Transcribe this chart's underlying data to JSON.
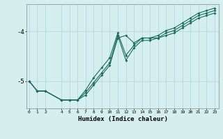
{
  "xlabel": "Humidex (Indice chaleur)",
  "bg_color": "#d5eeee",
  "grid_color": "#b8d8d8",
  "line_color": "#1a6b60",
  "x_ticks": [
    0,
    1,
    2,
    4,
    5,
    6,
    7,
    8,
    9,
    10,
    11,
    12,
    13,
    14,
    15,
    16,
    17,
    18,
    19,
    20,
    21,
    22,
    23
  ],
  "xlim": [
    -0.3,
    23.5
  ],
  "ylim": [
    -5.55,
    -3.45
  ],
  "yticks": [
    -5.0,
    -4.0
  ],
  "series": {
    "line1": {
      "x": [
        0,
        1,
        2,
        4,
        5,
        6,
        7,
        8,
        9,
        10,
        11,
        12,
        13,
        14,
        15,
        16,
        17,
        18,
        19,
        20,
        21,
        22,
        23
      ],
      "y": [
        -5.0,
        -5.2,
        -5.2,
        -5.38,
        -5.38,
        -5.38,
        -5.18,
        -4.93,
        -4.73,
        -4.53,
        -4.03,
        -4.48,
        -4.28,
        -4.13,
        -4.13,
        -4.08,
        -3.98,
        -3.93,
        -3.83,
        -3.73,
        -3.63,
        -3.58,
        -3.53
      ]
    },
    "line2": {
      "x": [
        0,
        1,
        2,
        4,
        5,
        6,
        7,
        8,
        9,
        10,
        11,
        12,
        13,
        14,
        15,
        16,
        17,
        18,
        19,
        20,
        21,
        22,
        23
      ],
      "y": [
        -5.0,
        -5.2,
        -5.2,
        -5.38,
        -5.38,
        -5.38,
        -5.23,
        -5.03,
        -4.83,
        -4.63,
        -4.08,
        -4.58,
        -4.33,
        -4.18,
        -4.18,
        -4.13,
        -4.03,
        -3.98,
        -3.88,
        -3.78,
        -3.68,
        -3.63,
        -3.58
      ]
    },
    "line3": {
      "x": [
        0,
        1,
        2,
        4,
        5,
        6,
        7,
        8,
        9,
        10,
        11,
        12,
        13,
        14,
        15,
        16,
        17,
        18,
        19,
        20,
        21,
        22,
        23
      ],
      "y": [
        -5.0,
        -5.2,
        -5.2,
        -5.38,
        -5.38,
        -5.38,
        -5.28,
        -5.08,
        -4.88,
        -4.68,
        -4.13,
        -4.08,
        -4.23,
        -4.13,
        -4.13,
        -4.13,
        -4.08,
        -4.03,
        -3.93,
        -3.83,
        -3.73,
        -3.68,
        -3.63
      ]
    }
  }
}
